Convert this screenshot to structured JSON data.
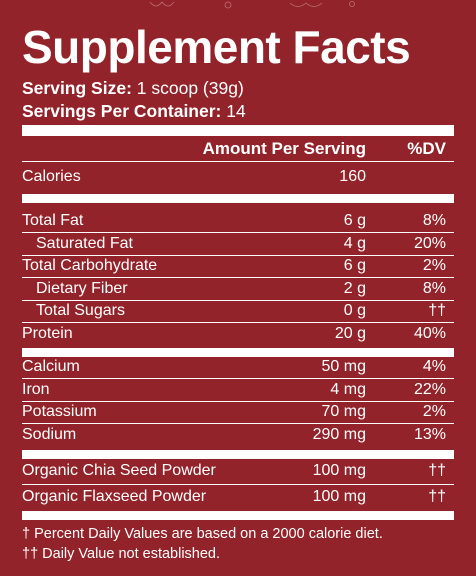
{
  "title": "Supplement Facts",
  "serving_size_label": "Serving Size:",
  "serving_size_value": " 1 scoop (39g)",
  "servings_per_container_label": "Servings Per Container:",
  "servings_per_container_value": " 14",
  "header": {
    "amount": "Amount Per Serving",
    "dv": "%DV"
  },
  "calories": {
    "name": "Calories",
    "amount": "160",
    "dv": ""
  },
  "group1": [
    {
      "name": "Total Fat",
      "amount": "6 g",
      "dv": "8%",
      "indent": false
    },
    {
      "name": "Saturated Fat",
      "amount": "4 g",
      "dv": "20%",
      "indent": true
    },
    {
      "name": "Total Carbohydrate",
      "amount": "6 g",
      "dv": "2%",
      "indent": false
    },
    {
      "name": "Dietary Fiber",
      "amount": "2 g",
      "dv": "8%",
      "indent": true
    },
    {
      "name": "Total Sugars",
      "amount": "0 g",
      "dv": "††",
      "indent": true
    },
    {
      "name": "Protein",
      "amount": "20 g",
      "dv": "40%",
      "indent": false
    }
  ],
  "group2": [
    {
      "name": "Calcium",
      "amount": "50 mg",
      "dv": "4%"
    },
    {
      "name": "Iron",
      "amount": "4 mg",
      "dv": "22%"
    },
    {
      "name": "Potassium",
      "amount": "70 mg",
      "dv": "2%"
    },
    {
      "name": "Sodium",
      "amount": "290 mg",
      "dv": "13%"
    }
  ],
  "group3": [
    {
      "name": "Organic Chia Seed Powder",
      "amount": "100 mg",
      "dv": "††"
    },
    {
      "name": "Organic Flaxseed Powder",
      "amount": "100 mg",
      "dv": "††"
    }
  ],
  "footnotes": [
    "† Percent Daily Values are based on a 2000 calorie diet.",
    "†† Daily Value not established."
  ],
  "colors": {
    "background": "#93232a",
    "text": "#ffffff"
  }
}
